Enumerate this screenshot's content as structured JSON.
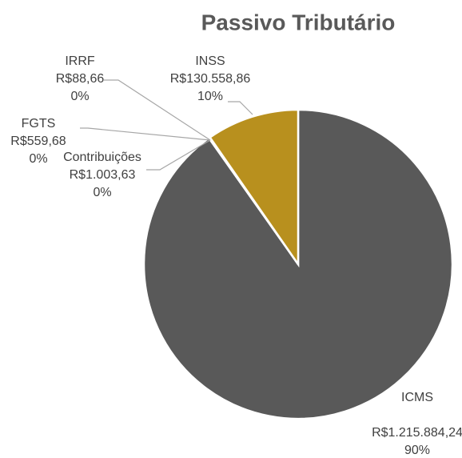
{
  "chart_data": {
    "type": "pie",
    "title": "Passivo Tributário",
    "categories": [
      "ICMS",
      "Contribuições",
      "FGTS",
      "IRRF",
      "INSS"
    ],
    "values": [
      1215884.24,
      1003.63,
      559.68,
      88.66,
      130558.86
    ],
    "value_labels": [
      "R$1.215.884,24",
      "R$1.003,63",
      "R$559,68",
      "R$88,66",
      "R$130.558,86"
    ],
    "percent_labels": [
      "90%",
      "0%",
      "0%",
      "0%",
      "10%"
    ],
    "colors": [
      "#595959",
      "#8c8c8c",
      "#a6a6a6",
      "#bfbfbf",
      "#b8901e"
    ]
  }
}
